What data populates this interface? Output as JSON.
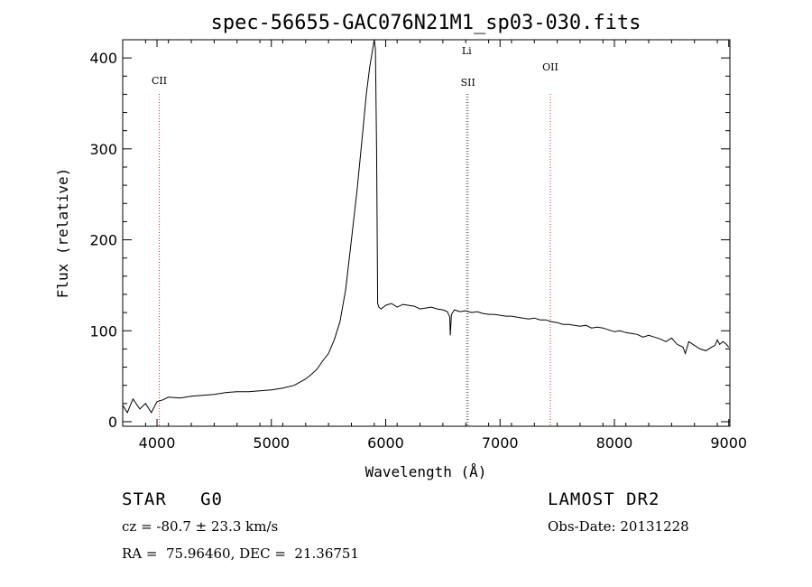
{
  "chart_data": {
    "type": "line",
    "title": "spec-56655-GAC076N21M1_sp03-030.fits",
    "xlabel": "Wavelength (Å)",
    "ylabel": "Flux (relative)",
    "xlim": [
      3700,
      9010
    ],
    "ylim": [
      -5,
      420
    ],
    "xticks": [
      4000,
      5000,
      6000,
      7000,
      8000,
      9000
    ],
    "yticks": [
      0,
      100,
      200,
      300,
      400
    ],
    "grid": false,
    "series": [
      {
        "x": [
          3700,
          3740,
          3790,
          3850,
          3900,
          3950,
          4000,
          4050,
          4100,
          4200,
          4300,
          4400,
          4500,
          4600,
          4700,
          4800,
          4900,
          5000,
          5100,
          5200,
          5300,
          5350,
          5400,
          5450,
          5500,
          5550,
          5600,
          5650,
          5700,
          5750,
          5800,
          5830,
          5860,
          5880,
          5900,
          5910,
          5920,
          5930,
          5935,
          5940,
          5960,
          6000,
          6050,
          6100,
          6150,
          6200,
          6250,
          6300,
          6350,
          6400,
          6450,
          6500,
          6540,
          6560,
          6565,
          6575,
          6600,
          6650,
          6700,
          6750,
          6800,
          6850,
          6900,
          6950,
          7000,
          7050,
          7100,
          7150,
          7200,
          7250,
          7300,
          7350,
          7400,
          7450,
          7500,
          7550,
          7600,
          7650,
          7700,
          7750,
          7800,
          7850,
          7900,
          7950,
          8000,
          8050,
          8100,
          8150,
          8200,
          8250,
          8300,
          8350,
          8400,
          8450,
          8500,
          8550,
          8600,
          8620,
          8650,
          8700,
          8750,
          8800,
          8850,
          8880,
          8900,
          8920,
          8950,
          8980,
          9000
        ],
        "y": [
          18,
          10,
          25,
          14,
          20,
          10,
          22,
          24,
          27,
          26,
          28,
          29,
          30,
          32,
          33,
          33,
          34,
          35,
          37,
          40,
          47,
          52,
          58,
          67,
          75,
          90,
          110,
          145,
          200,
          255,
          320,
          360,
          390,
          405,
          420,
          410,
          300,
          130,
          128,
          126,
          124,
          128,
          130,
          126,
          129,
          128,
          127,
          124,
          125,
          126,
          124,
          123,
          121,
          115,
          95,
          118,
          123,
          121,
          122,
          120,
          121,
          119,
          118,
          118,
          117,
          116,
          116,
          115,
          114,
          113,
          114,
          112,
          112,
          110,
          109,
          107,
          107,
          106,
          105,
          106,
          103,
          104,
          103,
          101,
          99,
          100,
          98,
          97,
          96,
          93,
          95,
          93,
          91,
          88,
          92,
          85,
          82,
          75,
          88,
          84,
          80,
          78,
          82,
          84,
          90,
          85,
          88,
          85,
          82
        ]
      }
    ],
    "lines": [
      {
        "x": 4020,
        "label": "CII",
        "color": "#d62828"
      },
      {
        "x": 6708,
        "label": "Li",
        "color": "#555555"
      },
      {
        "x": 6720,
        "label": "SII",
        "color": "#555555"
      },
      {
        "x": 7440,
        "label": "OII",
        "color": "#d62828"
      }
    ]
  },
  "info": {
    "class": "STAR   G0",
    "survey": "LAMOST DR2",
    "cz": "cz = -80.7 ± 23.3 km/s",
    "obsdate": "Obs-Date: 20131228",
    "radec": "RA =  75.96460, DEC =  21.36751"
  }
}
